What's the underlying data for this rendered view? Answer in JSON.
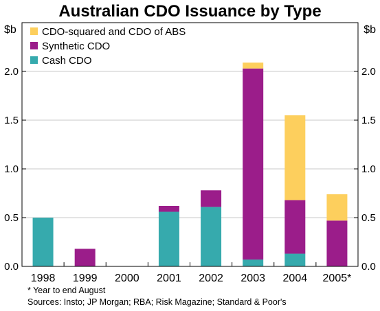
{
  "chart_data": {
    "type": "bar",
    "stacked": true,
    "title": "Australian CDO Issuance by Type",
    "unit_left": "$b",
    "unit_right": "$b",
    "categories": [
      "1998",
      "1999",
      "2000",
      "2001",
      "2002",
      "2003",
      "2004",
      "2005*"
    ],
    "series": [
      {
        "name": "Cash CDO",
        "color": "#36AAAD",
        "values": [
          0.5,
          0.0,
          0.0,
          0.56,
          0.61,
          0.07,
          0.13,
          0.0
        ]
      },
      {
        "name": "Synthetic CDO",
        "color": "#9B1D8A",
        "values": [
          0.0,
          0.18,
          0.0,
          0.06,
          0.17,
          1.96,
          0.55,
          0.47
        ]
      },
      {
        "name": "CDO-squared and CDO of ABS",
        "color": "#FDCF5D",
        "values": [
          0.0,
          0.0,
          0.0,
          0.0,
          0.0,
          0.06,
          0.87,
          0.27
        ]
      }
    ],
    "ylim": [
      0,
      2.5
    ],
    "yticks": [
      "0.0",
      "0.5",
      "1.0",
      "1.5",
      "2.0"
    ],
    "legend": "top-left",
    "grid": true
  },
  "footnote": "* Year to end August",
  "sources": "Sources: Insto; JP Morgan; RBA; Risk Magazine; Standard & Poor's"
}
